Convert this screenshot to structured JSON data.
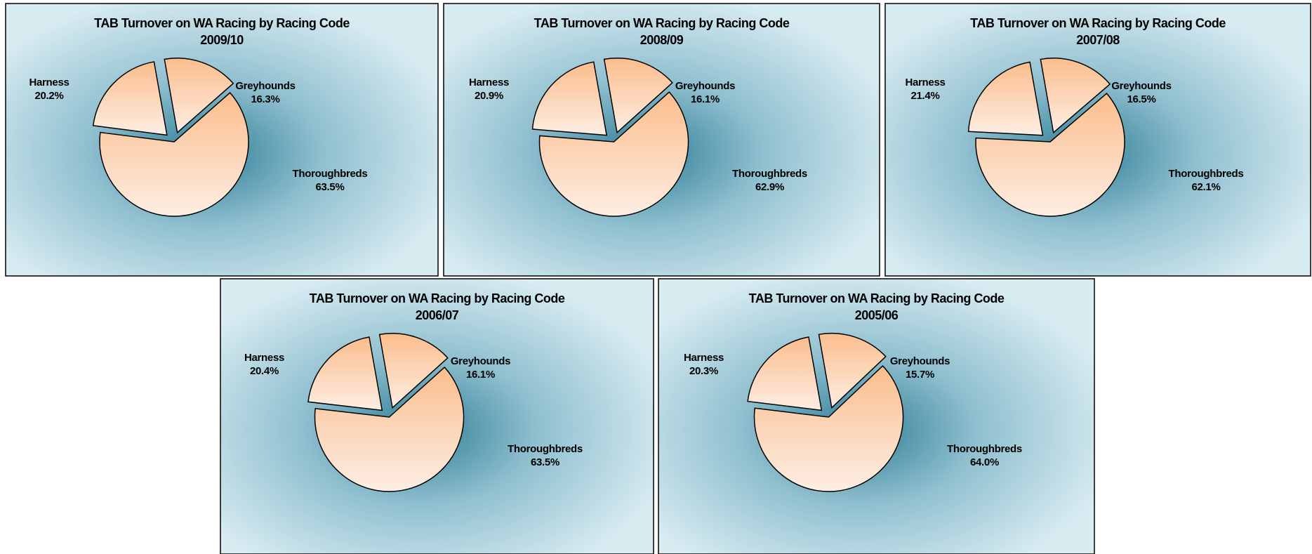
{
  "chart_data": [
    {
      "type": "pie",
      "title": "TAB Turnover on WA Racing  by Racing Code",
      "subtitle": "2009/10",
      "categories": [
        "Greyhounds",
        "Thoroughbreds",
        "Harness"
      ],
      "values": [
        16.3,
        63.5,
        20.2
      ],
      "value_labels": [
        "16.3%",
        "63.5%",
        "20.2%"
      ]
    },
    {
      "type": "pie",
      "title": "TAB Turnover on  WA Racing  by Racing Code",
      "subtitle": "2008/09",
      "categories": [
        "Greyhounds",
        "Thoroughbreds",
        "Harness"
      ],
      "values": [
        16.1,
        62.9,
        20.9
      ],
      "value_labels": [
        "16.1%",
        "62.9%",
        "20.9%"
      ]
    },
    {
      "type": "pie",
      "title": "TAB Turnover on  WA Racing  by Racing Code",
      "subtitle": "2007/08",
      "categories": [
        "Greyhounds",
        "Thoroughbreds",
        "Harness"
      ],
      "values": [
        16.5,
        62.1,
        21.4
      ],
      "value_labels": [
        "16.5%",
        "62.1%",
        "21.4%"
      ]
    },
    {
      "type": "pie",
      "title": "TAB Turnover on  WA Racing  by Racing Code",
      "subtitle": "2006/07",
      "categories": [
        "Greyhounds",
        "Thoroughbreds",
        "Harness"
      ],
      "values": [
        16.1,
        63.5,
        20.4
      ],
      "value_labels": [
        "16.1%",
        "63.5%",
        "20.4%"
      ]
    },
    {
      "type": "pie",
      "title": "TAB Turnover on  WA Racing  by Racing Code",
      "subtitle": "2005/06",
      "categories": [
        "Greyhounds",
        "Thoroughbreds",
        "Harness"
      ],
      "values": [
        15.7,
        64.0,
        20.3
      ],
      "value_labels": [
        "15.7%",
        "64.0%",
        "20.3%"
      ]
    }
  ]
}
